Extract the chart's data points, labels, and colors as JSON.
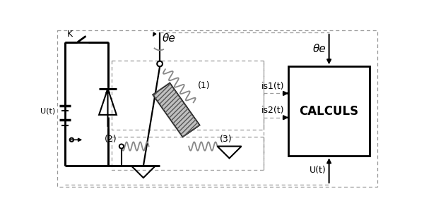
{
  "bg_color": "#ffffff",
  "lc": "#000000",
  "dc": "#999999",
  "cc": "#888888",
  "calculs_label": "CALCULS",
  "theta_label": "θe",
  "is1_label": "is1(t)",
  "is2_label": "is2(t)",
  "ut_label": "U(t)",
  "k_label": "K",
  "ut_left": "U(t)",
  "label_1": "(1)",
  "label_2": "(2)",
  "label_3": "(3)"
}
